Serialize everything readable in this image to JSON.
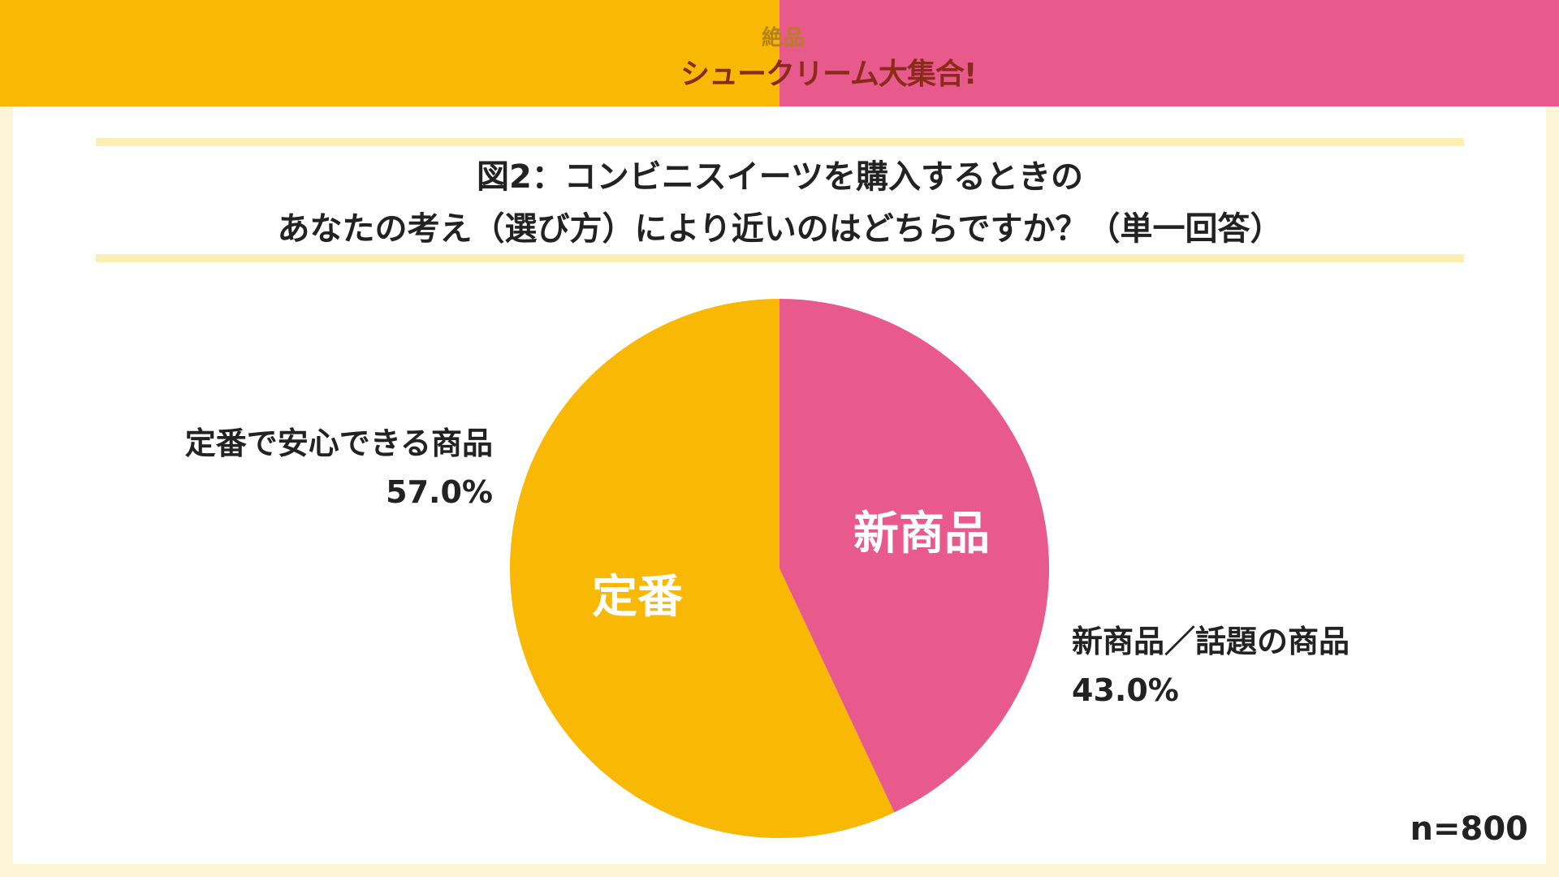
{
  "header": {
    "left_color": "#f9b804",
    "right_color": "#e85a8c",
    "logo_small": "絶品",
    "logo_main": "シュークリーム大集合!"
  },
  "title": {
    "line1": "図2：コンビニスイーツを購入するときの",
    "line2": "あなたの考え（選び方）により近いのはどちらですか？（単一回答）"
  },
  "chart_data": {
    "type": "pie",
    "title": "図2：コンビニスイーツを購入するときの あなたの考え（選び方）により近いのはどちらですか？（単一回答）",
    "slices": [
      {
        "name": "定番で安心できる商品",
        "short": "定番",
        "value": 57.0,
        "value_label": "57.0%",
        "color": "#f9b804"
      },
      {
        "name": "新商品／話題の商品",
        "short": "新商品",
        "value": 43.0,
        "value_label": "43.0%",
        "color": "#e85a8c"
      }
    ],
    "start": "12 o'clock",
    "direction": "counterclockwise from top for 定番; clockwise from top for 新商品",
    "sample": "n=800"
  }
}
